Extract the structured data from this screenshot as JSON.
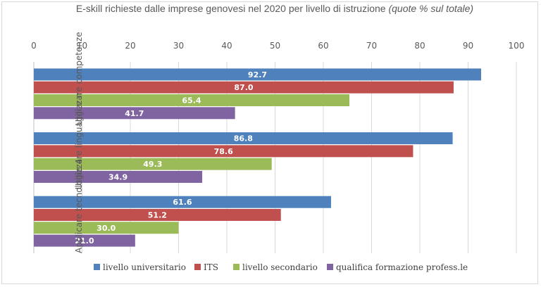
{
  "chart_data": {
    "type": "bar",
    "orientation": "horizontal",
    "title": "E-skill richieste dalle imprese genovesi nel 2020 per livello di istruzione",
    "subtitle": "(quote % sul totale)",
    "categories": [
      "Utilizzare competenze digitali",
      "Utilizzare linguaggi e metodi matematici e informatici",
      "Applicare tecnologie 4.0 per innovare processi"
    ],
    "series": [
      {
        "name": "livello universitario",
        "color": "#4f81bd",
        "values": [
          92.7,
          86.8,
          61.6
        ]
      },
      {
        "name": "ITS",
        "color": "#c0504d",
        "values": [
          87.0,
          78.6,
          51.2
        ]
      },
      {
        "name": "livello secondario",
        "color": "#9bbb59",
        "values": [
          65.4,
          49.3,
          30.0
        ]
      },
      {
        "name": "qualifica formazione profess.le",
        "color": "#8064a2",
        "values": [
          41.7,
          34.9,
          21.0
        ]
      }
    ],
    "xlim": [
      0,
      100
    ],
    "xticks": [
      "0",
      "10",
      "20",
      "30",
      "40",
      "50",
      "60",
      "70",
      "80",
      "90",
      "100"
    ],
    "grid": true,
    "legend": "bottom"
  }
}
